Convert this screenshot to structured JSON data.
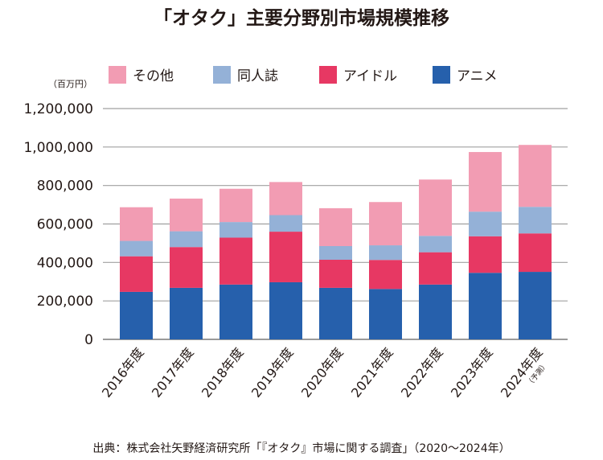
{
  "chart_data": {
    "type": "bar",
    "stacked": true,
    "title": "「オタク」主要分野別市場規模推移",
    "unit_label": "（百万円）",
    "categories": [
      "2016年度",
      "2017年度",
      "2018年度",
      "2019年度",
      "2020年度",
      "2021年度",
      "2022年度",
      "2023年度",
      "2024年度"
    ],
    "category_notes": [
      "",
      "",
      "",
      "",
      "",
      "",
      "",
      "",
      "（予測）"
    ],
    "series": [
      {
        "name": "アニメ",
        "color": "#2660ac",
        "values": [
          247,
          268,
          285,
          297,
          268,
          262,
          285,
          346,
          351
        ]
      },
      {
        "name": "アイドル",
        "color": "#e73863",
        "values": [
          185,
          212,
          244,
          263,
          146,
          151,
          168,
          190,
          200
        ]
      },
      {
        "name": "同人誌",
        "color": "#94b1d7",
        "values": [
          80,
          82,
          81,
          86,
          71,
          76,
          85,
          128,
          138
        ]
      },
      {
        "name": "その他",
        "color": "#f29cb3",
        "values": [
          175,
          170,
          173,
          172,
          197,
          225,
          293,
          310,
          322
        ]
      }
    ],
    "values_scale": 1000,
    "ylim": [
      0,
      1200000
    ],
    "yticks": [
      "0",
      "200,000",
      "400,000",
      "600,000",
      "800,000",
      "1,000,000",
      "1,200,000"
    ],
    "legend_order": [
      "その他",
      "同人誌",
      "アイドル",
      "アニメ"
    ],
    "legend_position": "top",
    "grid": true,
    "source": "出典：株式会社矢野経済研究所「『オタク』市場に関する調査」（2020～2024年）"
  }
}
